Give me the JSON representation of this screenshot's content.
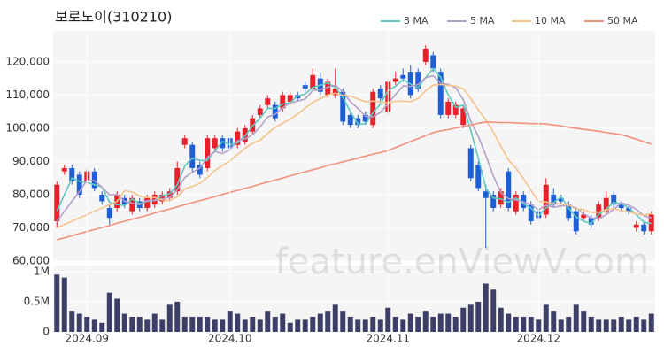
{
  "chart_data": [
    {
      "type": "candlestick",
      "title": "보로노이(310210)",
      "watermark": "feature.enViewV.com",
      "up_color": "#e8202a",
      "down_color": "#1f5fd6",
      "legend": "top-right",
      "grid": true,
      "ylim": [
        60000,
        129300
      ],
      "yticks": [
        {
          "value": 60000,
          "label": "60,000"
        },
        {
          "value": 70000,
          "label": "70,000"
        },
        {
          "value": 80000,
          "label": "80,000"
        },
        {
          "value": 90000,
          "label": "90,000"
        },
        {
          "value": 100000,
          "label": "100,000"
        },
        {
          "value": 110000,
          "label": "110,000"
        },
        {
          "value": 120000,
          "label": "120,000"
        }
      ],
      "open": [
        72000,
        87000,
        88000,
        86000,
        84000,
        87000,
        80000,
        76000,
        76000,
        79000,
        75000,
        78000,
        76000,
        77000,
        78000,
        79000,
        81000,
        95000,
        95000,
        89000,
        88000,
        94000,
        97000,
        97000,
        95000,
        96000,
        99000,
        104000,
        107000,
        107000,
        106000,
        108000,
        110000,
        113000,
        112000,
        115000,
        110000,
        110000,
        111000,
        104000,
        103000,
        104000,
        101000,
        112000,
        105000,
        114000,
        116000,
        117000,
        117000,
        120000,
        122000,
        117000,
        104000,
        104000,
        101000,
        94000,
        89000,
        81000,
        80000,
        77000,
        87000,
        75000,
        80000,
        77000,
        75000,
        74000,
        80000,
        79000,
        77000,
        75000,
        73000,
        73000,
        73000,
        75000,
        80000,
        77000,
        76000,
        70000,
        71000,
        69000
      ],
      "high": [
        84000,
        89000,
        89000,
        87000,
        88000,
        88000,
        81000,
        77000,
        81000,
        80000,
        80000,
        79000,
        80000,
        81000,
        81000,
        82000,
        90000,
        98000,
        96000,
        90000,
        98000,
        98000,
        98000,
        98000,
        100000,
        101000,
        104000,
        107000,
        110000,
        108000,
        111000,
        111000,
        111000,
        114000,
        118000,
        117000,
        115000,
        118000,
        112000,
        105000,
        104000,
        105000,
        112000,
        113000,
        115000,
        117000,
        118000,
        119000,
        118000,
        125000,
        123000,
        118000,
        109000,
        108000,
        107000,
        95000,
        90000,
        83000,
        81000,
        82000,
        88000,
        81000,
        81000,
        78000,
        76000,
        85000,
        82000,
        80000,
        78000,
        76000,
        75000,
        74000,
        78000,
        81000,
        81000,
        78000,
        77000,
        72000,
        72000,
        75000
      ],
      "low": [
        70000,
        86000,
        83000,
        79000,
        83000,
        81000,
        77000,
        71000,
        75000,
        76000,
        74000,
        75000,
        75000,
        76000,
        77000,
        78000,
        80000,
        94000,
        87000,
        85000,
        87000,
        93000,
        93000,
        93000,
        94000,
        95000,
        98000,
        103000,
        106000,
        102000,
        105000,
        107000,
        108000,
        111000,
        111000,
        110000,
        109000,
        109000,
        101000,
        100000,
        100000,
        101000,
        100000,
        108000,
        104000,
        113000,
        114000,
        109000,
        111000,
        119000,
        117000,
        103000,
        103000,
        103000,
        100000,
        84000,
        81000,
        64000,
        75000,
        76000,
        75000,
        74000,
        75000,
        71000,
        72000,
        73000,
        76000,
        77000,
        72000,
        68000,
        72000,
        70000,
        72000,
        74000,
        76000,
        75000,
        74000,
        69000,
        68000,
        68000
      ],
      "close": [
        83000,
        88000,
        84000,
        80000,
        87000,
        82000,
        78000,
        73000,
        80000,
        77000,
        79000,
        76000,
        79000,
        80000,
        80000,
        81000,
        88000,
        97000,
        88000,
        86000,
        97000,
        97000,
        94000,
        94000,
        99000,
        100000,
        103000,
        106000,
        109000,
        103000,
        110000,
        110000,
        109000,
        112000,
        116000,
        111000,
        114000,
        112000,
        102000,
        101000,
        101000,
        102000,
        111000,
        109000,
        114000,
        115000,
        115000,
        110000,
        112000,
        124000,
        118000,
        104000,
        108000,
        107000,
        106000,
        85000,
        82000,
        79000,
        76000,
        81000,
        76000,
        80000,
        76000,
        72000,
        73000,
        83000,
        77000,
        78000,
        73000,
        69000,
        74000,
        71000,
        77000,
        79000,
        77000,
        76000,
        75000,
        71000,
        69000,
        74000
      ],
      "series": [
        {
          "name": "3 MA",
          "color": "#5ec9c1",
          "values": [
            75000,
            80000,
            85000,
            84000,
            83700,
            83000,
            82300,
            77700,
            77000,
            76700,
            78700,
            77300,
            78000,
            78300,
            79700,
            80300,
            83000,
            88700,
            91000,
            90300,
            90300,
            93300,
            96000,
            95000,
            95700,
            97700,
            100700,
            103000,
            106000,
            106000,
            107300,
            107700,
            109700,
            110300,
            112300,
            113000,
            113700,
            112300,
            109300,
            105000,
            101300,
            101300,
            104700,
            107300,
            111300,
            112700,
            114700,
            113300,
            112300,
            115300,
            118000,
            115300,
            110000,
            106300,
            107000,
            99300,
            91000,
            82000,
            79000,
            78700,
            77700,
            79000,
            77300,
            76000,
            73700,
            76000,
            77700,
            79300,
            76000,
            73300,
            72000,
            71300,
            74000,
            75700,
            77700,
            77300,
            76000,
            74000,
            71700,
            71300
          ]
        },
        {
          "name": "5 MA",
          "color": "#b39fca",
          "values": [
            72000,
            75000,
            78000,
            81000,
            84400,
            84200,
            82200,
            80000,
            80000,
            78000,
            77400,
            77000,
            78200,
            78200,
            78800,
            79200,
            81600,
            85200,
            86800,
            88000,
            91200,
            93000,
            92400,
            93600,
            96200,
            96800,
            98000,
            100400,
            103400,
            104200,
            106200,
            107600,
            108200,
            108800,
            111400,
            111600,
            112400,
            113000,
            111000,
            108000,
            106000,
            103600,
            103400,
            104800,
            107400,
            110200,
            112800,
            112600,
            113200,
            115200,
            115800,
            113600,
            113200,
            112200,
            108600,
            102000,
            97600,
            91800,
            85600,
            80600,
            78800,
            78400,
            77800,
            77000,
            75400,
            76800,
            76200,
            76600,
            76800,
            76000,
            74200,
            73000,
            72800,
            74000,
            75600,
            77600,
            76800,
            75600,
            73600,
            73000
          ]
        },
        {
          "name": "10 MA",
          "color": "#f5c38c",
          "values": [
            70000,
            71000,
            72000,
            73000,
            74000,
            75000,
            76000,
            77000,
            78000,
            81200,
            80800,
            79600,
            79100,
            79100,
            78400,
            78300,
            79300,
            81700,
            82500,
            83400,
            85200,
            87300,
            88800,
            90200,
            92100,
            94000,
            95500,
            96400,
            98500,
            100200,
            101500,
            102800,
            104300,
            106100,
            107800,
            108900,
            110000,
            110600,
            109900,
            109700,
            108800,
            108000,
            108200,
            107900,
            107700,
            108100,
            108200,
            108000,
            109000,
            111300,
            113000,
            113200,
            112900,
            112700,
            111900,
            108900,
            105600,
            102500,
            98900,
            94600,
            90400,
            88000,
            84800,
            81300,
            78000,
            77800,
            77300,
            77200,
            76900,
            75700,
            75500,
            74600,
            74700,
            75400,
            75800,
            75100,
            74900,
            74200,
            73800,
            74300
          ]
        },
        {
          "name": "50 MA",
          "color": "#f4917d",
          "values": [
            66400,
            67000,
            67600,
            68300,
            68900,
            69500,
            70100,
            70700,
            71400,
            72000,
            72600,
            73200,
            73800,
            74500,
            75100,
            75700,
            76300,
            77000,
            77600,
            78200,
            78800,
            79400,
            80100,
            80700,
            81300,
            81900,
            82500,
            83200,
            83800,
            84400,
            85000,
            85700,
            86300,
            86900,
            87500,
            88100,
            88800,
            89300,
            89900,
            90400,
            91000,
            91600,
            92200,
            92700,
            93300,
            94200,
            95100,
            96000,
            96900,
            97800,
            98700,
            99200,
            99600,
            100100,
            100500,
            101000,
            101500,
            101900,
            101800,
            101700,
            101700,
            101600,
            101500,
            101400,
            101400,
            101300,
            101000,
            100700,
            100300,
            100000,
            99700,
            99400,
            99100,
            98700,
            98400,
            98100,
            97400,
            96700,
            95900,
            95200
          ]
        }
      ]
    },
    {
      "type": "bar",
      "color": "#3d3f66",
      "grid": true,
      "categories": [
        null,
        null,
        null,
        null,
        "2024.09",
        null,
        null,
        null,
        null,
        null,
        null,
        null,
        null,
        null,
        null,
        null,
        null,
        null,
        null,
        null,
        null,
        null,
        null,
        "2024.10",
        null,
        null,
        null,
        null,
        null,
        null,
        null,
        null,
        null,
        null,
        null,
        null,
        null,
        null,
        null,
        null,
        null,
        null,
        null,
        null,
        "2024.11",
        null,
        null,
        null,
        null,
        null,
        null,
        null,
        null,
        null,
        null,
        null,
        null,
        null,
        null,
        null,
        null,
        null,
        null,
        null,
        "2024.12",
        null,
        null,
        null,
        null,
        null,
        null,
        null,
        null,
        null,
        null,
        null,
        null,
        null,
        null,
        null
      ],
      "values": [
        950000,
        900000,
        350000,
        300000,
        250000,
        200000,
        150000,
        650000,
        550000,
        300000,
        250000,
        250000,
        200000,
        300000,
        200000,
        450000,
        500000,
        250000,
        250000,
        250000,
        250000,
        200000,
        200000,
        350000,
        300000,
        200000,
        250000,
        200000,
        350000,
        250000,
        300000,
        150000,
        200000,
        200000,
        250000,
        300000,
        350000,
        450000,
        350000,
        250000,
        200000,
        200000,
        250000,
        200000,
        400000,
        250000,
        200000,
        300000,
        250000,
        350000,
        250000,
        300000,
        300000,
        250000,
        400000,
        450000,
        500000,
        800000,
        700000,
        400000,
        300000,
        250000,
        250000,
        250000,
        200000,
        450000,
        350000,
        200000,
        250000,
        450000,
        350000,
        250000,
        200000,
        200000,
        200000,
        250000,
        200000,
        250000,
        200000,
        300000
      ],
      "ylim": [
        0,
        1100000
      ],
      "yticks": [
        0,
        {
          "value": 500000,
          "label": "0.5M"
        },
        {
          "value": 1000000,
          "label": "1M"
        }
      ]
    }
  ]
}
